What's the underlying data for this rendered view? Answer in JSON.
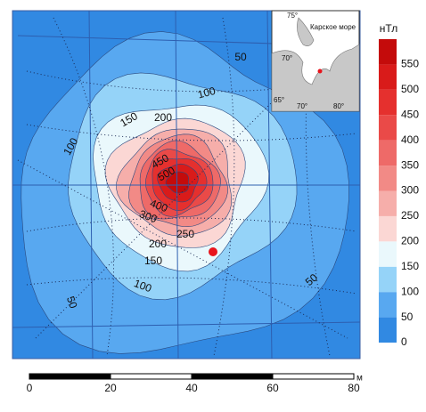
{
  "colorbar": {
    "title": "нТл",
    "range": [
      0,
      600
    ],
    "ticks": [
      0,
      50,
      100,
      150,
      200,
      250,
      300,
      350,
      400,
      450,
      500,
      550
    ],
    "colors": [
      "#3189e2",
      "#58a8f0",
      "#95d3f8",
      "#eaf8fc",
      "#fbd7d4",
      "#f6aeaa",
      "#f28a86",
      "#ee6a68",
      "#ea4a48",
      "#e5302e",
      "#d91b1a",
      "#c40b0b"
    ]
  },
  "contour_labels": [
    "50",
    "100",
    "150",
    "200",
    "100",
    "450",
    "500",
    "400",
    "300",
    "250",
    "200",
    "150",
    "100",
    "50",
    "50"
  ],
  "scale_bar": {
    "range": [
      0,
      80
    ],
    "ticks": [
      0,
      20,
      40,
      60,
      80
    ],
    "unit": "м"
  },
  "inset": {
    "sea_label": "Карское море",
    "lat_labels": [
      "75°",
      "70°",
      "65°"
    ],
    "lon_labels": [
      "70°",
      "80°"
    ]
  }
}
